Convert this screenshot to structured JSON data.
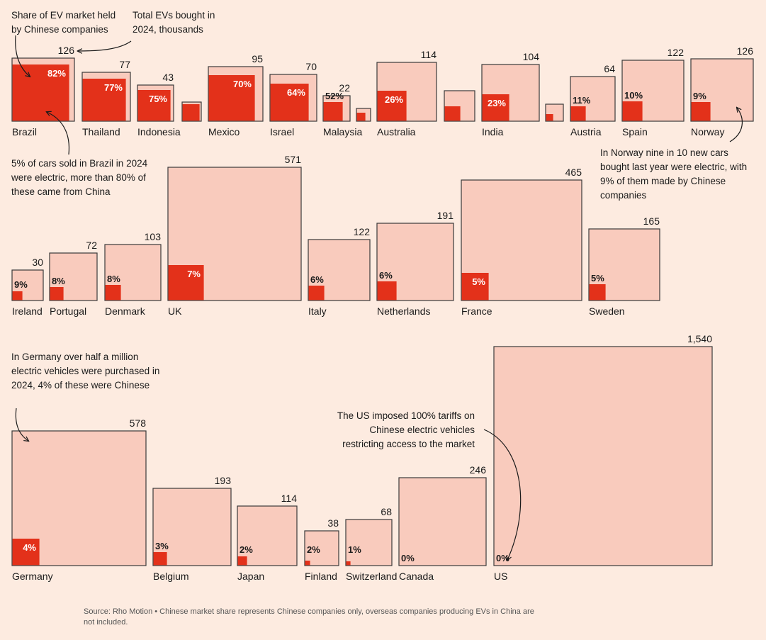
{
  "annotations": {
    "share_label": "Share of EV market held by Chinese companies",
    "total_label": "Total EVs bought in 2024, thousands",
    "brazil_note": "5% of cars sold in Brazil in 2024 were electric, more than 80% of these came from China",
    "norway_note": "In Norway nine in 10 new cars bought last year were electric, with 9% of them made by Chinese companies",
    "germany_note": "In Germany over half a million electric vehicles were purchased in 2024, 4% of these were Chinese",
    "us_note": "The US imposed 100% tariffs on Chinese electric vehicles restricting access to the market"
  },
  "source": "Source: Rho Motion • Chinese market share represents Chinese companies only, overseas companies producing EVs in China are not included.",
  "colors": {
    "background": "#fdebe0",
    "total": "#f9cbbd",
    "share": "#e3311a",
    "stroke": "#3a3a3a"
  },
  "chart_data": {
    "type": "proportional-squares",
    "unit": "Total EVs bought in 2024, thousands",
    "countries": [
      {
        "name": "Brazil",
        "total": "126",
        "share": "82%",
        "share_value": 82
      },
      {
        "name": "Thailand",
        "total": "77",
        "share": "77%",
        "share_value": 77
      },
      {
        "name": "Indonesia",
        "total": "43",
        "share": "75%",
        "share_value": 75
      },
      {
        "name": "",
        "total": "",
        "share": "",
        "share_value": 65
      },
      {
        "name": "Mexico",
        "total": "95",
        "share": "70%",
        "share_value": 70
      },
      {
        "name": "Israel",
        "total": "70",
        "share": "64%",
        "share_value": 64
      },
      {
        "name": "Malaysia",
        "total": "22",
        "share": "52%",
        "share_value": 52
      },
      {
        "name": "",
        "total": "",
        "share": "",
        "share_value": 60
      },
      {
        "name": "Australia",
        "total": "114",
        "share": "26%",
        "share_value": 26
      },
      {
        "name": "",
        "total": "",
        "share": "",
        "share_value": 24
      },
      {
        "name": "India",
        "total": "104",
        "share": "23%",
        "share_value": 23
      },
      {
        "name": "",
        "total": "",
        "share": "",
        "share_value": 20
      },
      {
        "name": "Austria",
        "total": "64",
        "share": "11%",
        "share_value": 11
      },
      {
        "name": "Spain",
        "total": "122",
        "share": "10%",
        "share_value": 10
      },
      {
        "name": "Norway",
        "total": "126",
        "share": "9%",
        "share_value": 9
      },
      {
        "name": "Ireland",
        "total": "30",
        "share": "9%",
        "share_value": 9
      },
      {
        "name": "Portugal",
        "total": "72",
        "share": "8%",
        "share_value": 8
      },
      {
        "name": "Denmark",
        "total": "103",
        "share": "8%",
        "share_value": 8
      },
      {
        "name": "UK",
        "total": "571",
        "share": "7%",
        "share_value": 7
      },
      {
        "name": "Italy",
        "total": "122",
        "share": "6%",
        "share_value": 6
      },
      {
        "name": "Netherlands",
        "total": "191",
        "share": "6%",
        "share_value": 6
      },
      {
        "name": "France",
        "total": "465",
        "share": "5%",
        "share_value": 5
      },
      {
        "name": "Sweden",
        "total": "165",
        "share": "5%",
        "share_value": 5
      },
      {
        "name": "Germany",
        "total": "578",
        "share": "4%",
        "share_value": 4
      },
      {
        "name": "Belgium",
        "total": "193",
        "share": "3%",
        "share_value": 3
      },
      {
        "name": "Japan",
        "total": "114",
        "share": "2%",
        "share_value": 2
      },
      {
        "name": "Finland",
        "total": "38",
        "share": "2%",
        "share_value": 2
      },
      {
        "name": "Switzerland",
        "total": "68",
        "share": "1%",
        "share_value": 1
      },
      {
        "name": "Canada",
        "total": "246",
        "share": "0%",
        "share_value": 0
      },
      {
        "name": "US",
        "total": "1,540",
        "share": "0%",
        "share_value": 0
      }
    ]
  }
}
